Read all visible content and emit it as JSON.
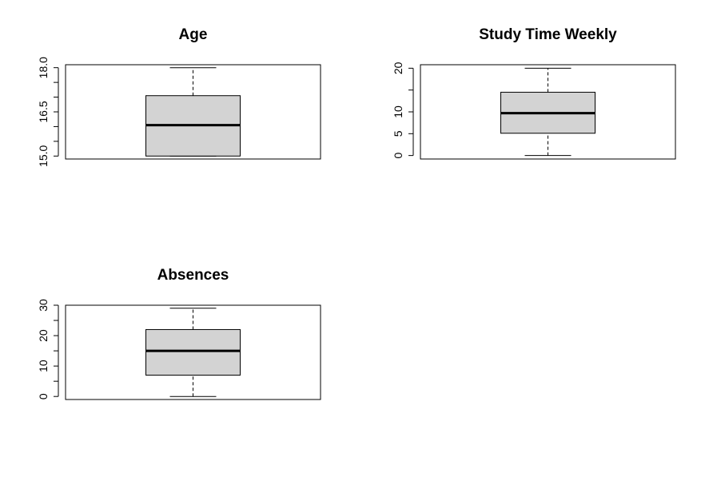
{
  "chart_data": [
    {
      "type": "boxplot",
      "title": "Age",
      "ylim": [
        14.9,
        18.1
      ],
      "ticks": [
        {
          "value": 15.0,
          "label": "15.0",
          "labeled": true
        },
        {
          "value": 15.5,
          "label": "",
          "labeled": false
        },
        {
          "value": 16.0,
          "label": "",
          "labeled": false
        },
        {
          "value": 16.5,
          "label": "16.5",
          "labeled": true
        },
        {
          "value": 17.0,
          "label": "",
          "labeled": false
        },
        {
          "value": 17.5,
          "label": "",
          "labeled": false
        },
        {
          "value": 18.0,
          "label": "18.0",
          "labeled": true
        }
      ],
      "box": {
        "min": 15.0,
        "q1": 15.0,
        "median": 16.05,
        "q3": 17.05,
        "max": 18.0
      },
      "colors": {
        "box_fill": "#d3d3d3",
        "stroke": "#000000"
      }
    },
    {
      "type": "boxplot",
      "title": "Study Time Weekly",
      "ylim": [
        -0.8,
        20.8
      ],
      "ticks": [
        {
          "value": 0,
          "label": "0",
          "labeled": true
        },
        {
          "value": 5,
          "label": "5",
          "labeled": true
        },
        {
          "value": 10,
          "label": "10",
          "labeled": true
        },
        {
          "value": 15,
          "label": "",
          "labeled": false
        },
        {
          "value": 20,
          "label": "20",
          "labeled": true
        }
      ],
      "box": {
        "min": 0.0,
        "q1": 5.1,
        "median": 9.7,
        "q3": 14.5,
        "max": 20.0
      },
      "colors": {
        "box_fill": "#d3d3d3",
        "stroke": "#000000"
      }
    },
    {
      "type": "boxplot",
      "title": "Absences",
      "ylim": [
        -1.0,
        30.0
      ],
      "ticks": [
        {
          "value": 0,
          "label": "0",
          "labeled": true
        },
        {
          "value": 5,
          "label": "",
          "labeled": false
        },
        {
          "value": 10,
          "label": "10",
          "labeled": true
        },
        {
          "value": 15,
          "label": "",
          "labeled": false
        },
        {
          "value": 20,
          "label": "20",
          "labeled": true
        },
        {
          "value": 25,
          "label": "",
          "labeled": false
        },
        {
          "value": 30,
          "label": "30",
          "labeled": true
        }
      ],
      "box": {
        "min": 0,
        "q1": 7,
        "median": 15,
        "q3": 22,
        "max": 29
      },
      "colors": {
        "box_fill": "#d3d3d3",
        "stroke": "#000000"
      }
    }
  ]
}
